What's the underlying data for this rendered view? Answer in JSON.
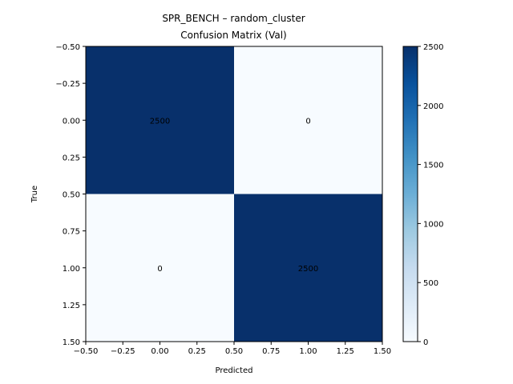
{
  "chart_data": {
    "type": "heatmap",
    "title": "SPR_BENCH – random_cluster",
    "subtitle": "Confusion Matrix (Val)",
    "xlabel": "Predicted",
    "ylabel": "True",
    "matrix": [
      [
        2500,
        0
      ],
      [
        0,
        2500
      ]
    ],
    "cell_labels": [
      "2500",
      "0",
      "0",
      "2500"
    ],
    "xlim": [
      -0.5,
      1.5
    ],
    "ylim": [
      1.5,
      -0.5
    ],
    "x_ticks": [
      -0.5,
      -0.25,
      0.0,
      0.25,
      0.5,
      0.75,
      1.0,
      1.25,
      1.5
    ],
    "x_tick_labels": [
      "−0.50",
      "−0.25",
      "0.00",
      "0.25",
      "0.50",
      "0.75",
      "1.00",
      "1.25",
      "1.50"
    ],
    "y_ticks": [
      -0.5,
      -0.25,
      0.0,
      0.25,
      0.5,
      0.75,
      1.0,
      1.25,
      1.5
    ],
    "y_tick_labels": [
      "−0.50",
      "−0.25",
      "0.00",
      "0.25",
      "0.50",
      "0.75",
      "1.00",
      "1.25",
      "1.50"
    ],
    "colormap": "Blues",
    "color_low": "#f7fbff",
    "color_high": "#08306b",
    "colorbar": {
      "range": [
        0,
        2500
      ],
      "ticks": [
        0,
        500,
        1000,
        1500,
        2000,
        2500
      ],
      "tick_labels": [
        "0",
        "500",
        "1000",
        "1500",
        "2000",
        "2500"
      ]
    },
    "grid": false
  }
}
